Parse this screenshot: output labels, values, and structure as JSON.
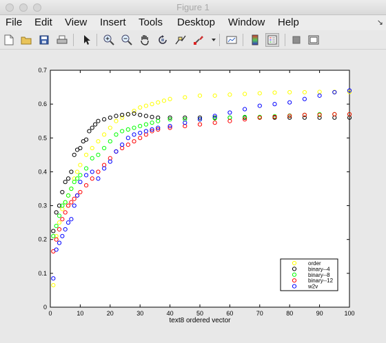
{
  "window": {
    "title": "Figure 1"
  },
  "menu": [
    "File",
    "Edit",
    "View",
    "Insert",
    "Tools",
    "Desktop",
    "Window",
    "Help"
  ],
  "menu_corner_icon": "dock-arrow-icon",
  "toolbar": {
    "tools": [
      "new-figure",
      "open-file",
      "save",
      "print",
      "edit-plot-arrow",
      "zoom-in",
      "zoom-out",
      "pan-hand",
      "rotate-3d",
      "data-cursor",
      "brush",
      "link-plot",
      "insert-colorbar",
      "insert-legend",
      "hide-plot-tools",
      "show-plot-tools"
    ]
  },
  "chart_data": {
    "type": "scatter",
    "xlabel": "text8 ordered vector",
    "xlim": [
      0,
      100
    ],
    "ylim": [
      0,
      0.7
    ],
    "xticks": [
      0,
      10,
      20,
      30,
      40,
      50,
      60,
      70,
      80,
      90,
      100
    ],
    "yticks": [
      0,
      0.1,
      0.2,
      0.3,
      0.4,
      0.5,
      0.6,
      0.7
    ],
    "grid": false,
    "legend_position": "bottom-right",
    "marker": "circle",
    "series": [
      {
        "name": "order",
        "color": "#ffff00",
        "points": [
          [
            1,
            0.065
          ],
          [
            2,
            0.21
          ],
          [
            3,
            0.25
          ],
          [
            4,
            0.29
          ],
          [
            5,
            0.31
          ],
          [
            6,
            0.33
          ],
          [
            7,
            0.35
          ],
          [
            8,
            0.38
          ],
          [
            9,
            0.4
          ],
          [
            10,
            0.42
          ],
          [
            12,
            0.45
          ],
          [
            14,
            0.47
          ],
          [
            16,
            0.49
          ],
          [
            18,
            0.51
          ],
          [
            20,
            0.53
          ],
          [
            22,
            0.55
          ],
          [
            24,
            0.56
          ],
          [
            26,
            0.57
          ],
          [
            28,
            0.58
          ],
          [
            30,
            0.59
          ],
          [
            32,
            0.595
          ],
          [
            34,
            0.6
          ],
          [
            36,
            0.605
          ],
          [
            38,
            0.61
          ],
          [
            40,
            0.615
          ],
          [
            45,
            0.62
          ],
          [
            50,
            0.625
          ],
          [
            55,
            0.625
          ],
          [
            60,
            0.628
          ],
          [
            65,
            0.63
          ],
          [
            70,
            0.632
          ],
          [
            75,
            0.634
          ],
          [
            80,
            0.635
          ],
          [
            85,
            0.635
          ],
          [
            90,
            0.636
          ],
          [
            95,
            0.636
          ],
          [
            100,
            0.636
          ]
        ]
      },
      {
        "name": "binary--4",
        "color": "#000000",
        "points": [
          [
            1,
            0.225
          ],
          [
            2,
            0.28
          ],
          [
            3,
            0.3
          ],
          [
            4,
            0.34
          ],
          [
            5,
            0.37
          ],
          [
            6,
            0.38
          ],
          [
            7,
            0.4
          ],
          [
            8,
            0.45
          ],
          [
            9,
            0.465
          ],
          [
            10,
            0.47
          ],
          [
            11,
            0.49
          ],
          [
            12,
            0.495
          ],
          [
            13,
            0.52
          ],
          [
            14,
            0.53
          ],
          [
            15,
            0.54
          ],
          [
            16,
            0.55
          ],
          [
            18,
            0.555
          ],
          [
            20,
            0.56
          ],
          [
            22,
            0.565
          ],
          [
            24,
            0.568
          ],
          [
            26,
            0.57
          ],
          [
            28,
            0.572
          ],
          [
            30,
            0.568
          ],
          [
            32,
            0.565
          ],
          [
            34,
            0.562
          ],
          [
            36,
            0.56
          ],
          [
            40,
            0.56
          ],
          [
            45,
            0.56
          ],
          [
            50,
            0.56
          ],
          [
            55,
            0.56
          ],
          [
            60,
            0.56
          ],
          [
            65,
            0.56
          ],
          [
            70,
            0.56
          ],
          [
            75,
            0.56
          ],
          [
            80,
            0.56
          ],
          [
            85,
            0.56
          ],
          [
            90,
            0.56
          ],
          [
            95,
            0.56
          ],
          [
            100,
            0.56
          ]
        ]
      },
      {
        "name": "binary--8",
        "color": "#00ff00",
        "points": [
          [
            1,
            0.21
          ],
          [
            2,
            0.24
          ],
          [
            3,
            0.27
          ],
          [
            4,
            0.3
          ],
          [
            5,
            0.31
          ],
          [
            6,
            0.33
          ],
          [
            7,
            0.35
          ],
          [
            8,
            0.37
          ],
          [
            9,
            0.38
          ],
          [
            10,
            0.39
          ],
          [
            12,
            0.41
          ],
          [
            14,
            0.44
          ],
          [
            16,
            0.45
          ],
          [
            18,
            0.47
          ],
          [
            20,
            0.49
          ],
          [
            22,
            0.51
          ],
          [
            24,
            0.52
          ],
          [
            26,
            0.525
          ],
          [
            28,
            0.53
          ],
          [
            30,
            0.535
          ],
          [
            32,
            0.54
          ],
          [
            34,
            0.545
          ],
          [
            36,
            0.55
          ],
          [
            40,
            0.555
          ],
          [
            45,
            0.555
          ],
          [
            50,
            0.555
          ],
          [
            55,
            0.558
          ],
          [
            60,
            0.56
          ],
          [
            65,
            0.562
          ],
          [
            70,
            0.562
          ],
          [
            75,
            0.564
          ],
          [
            80,
            0.566
          ],
          [
            85,
            0.568
          ],
          [
            90,
            0.57
          ],
          [
            95,
            0.57
          ],
          [
            100,
            0.57
          ]
        ]
      },
      {
        "name": "binary--12",
        "color": "#ff0000",
        "points": [
          [
            1,
            0.165
          ],
          [
            2,
            0.2
          ],
          [
            3,
            0.23
          ],
          [
            4,
            0.26
          ],
          [
            5,
            0.28
          ],
          [
            6,
            0.3
          ],
          [
            7,
            0.31
          ],
          [
            8,
            0.32
          ],
          [
            9,
            0.33
          ],
          [
            10,
            0.34
          ],
          [
            12,
            0.36
          ],
          [
            14,
            0.38
          ],
          [
            16,
            0.4
          ],
          [
            18,
            0.42
          ],
          [
            20,
            0.44
          ],
          [
            22,
            0.46
          ],
          [
            24,
            0.47
          ],
          [
            26,
            0.48
          ],
          [
            28,
            0.49
          ],
          [
            30,
            0.5
          ],
          [
            32,
            0.51
          ],
          [
            34,
            0.52
          ],
          [
            36,
            0.525
          ],
          [
            40,
            0.53
          ],
          [
            45,
            0.535
          ],
          [
            50,
            0.54
          ],
          [
            55,
            0.545
          ],
          [
            60,
            0.55
          ],
          [
            65,
            0.555
          ],
          [
            70,
            0.56
          ],
          [
            75,
            0.562
          ],
          [
            80,
            0.565
          ],
          [
            85,
            0.568
          ],
          [
            90,
            0.568
          ],
          [
            95,
            0.57
          ],
          [
            100,
            0.57
          ]
        ]
      },
      {
        "name": "w2v",
        "color": "#0000ff",
        "points": [
          [
            1,
            0.085
          ],
          [
            2,
            0.17
          ],
          [
            3,
            0.19
          ],
          [
            4,
            0.21
          ],
          [
            5,
            0.23
          ],
          [
            6,
            0.25
          ],
          [
            7,
            0.26
          ],
          [
            8,
            0.3
          ],
          [
            9,
            0.33
          ],
          [
            10,
            0.37
          ],
          [
            12,
            0.39
          ],
          [
            14,
            0.4
          ],
          [
            16,
            0.38
          ],
          [
            18,
            0.41
          ],
          [
            20,
            0.43
          ],
          [
            22,
            0.46
          ],
          [
            24,
            0.48
          ],
          [
            26,
            0.5
          ],
          [
            28,
            0.51
          ],
          [
            30,
            0.515
          ],
          [
            32,
            0.52
          ],
          [
            34,
            0.525
          ],
          [
            36,
            0.53
          ],
          [
            40,
            0.535
          ],
          [
            45,
            0.545
          ],
          [
            50,
            0.555
          ],
          [
            55,
            0.565
          ],
          [
            60,
            0.575
          ],
          [
            65,
            0.585
          ],
          [
            70,
            0.595
          ],
          [
            75,
            0.6
          ],
          [
            80,
            0.605
          ],
          [
            85,
            0.615
          ],
          [
            90,
            0.625
          ],
          [
            95,
            0.635
          ],
          [
            100,
            0.64
          ]
        ]
      }
    ]
  }
}
